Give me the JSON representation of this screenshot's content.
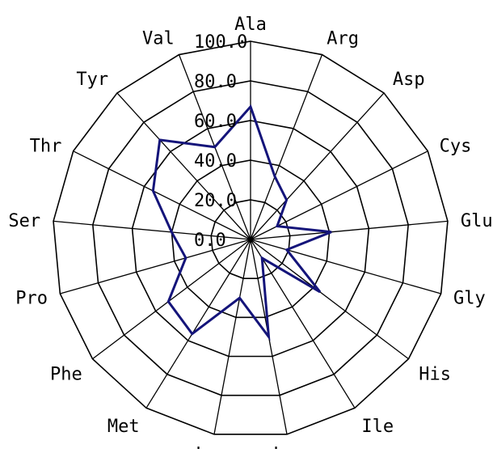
{
  "chart_data": {
    "type": "radar",
    "categories": [
      "Ala",
      "Arg",
      "Asp",
      "Cys",
      "Glu",
      "Gly",
      "His",
      "Ile",
      "Leu",
      "Lys",
      "Met",
      "Phe",
      "Pro",
      "Ser",
      "Thr",
      "Tyr",
      "Val"
    ],
    "series": [
      {
        "values": [
          67,
          34,
          27,
          15,
          41,
          19,
          44,
          11,
          50,
          30,
          56,
          52,
          34,
          40,
          55,
          68,
          50
        ]
      }
    ],
    "radial_ticks": [
      "0.0",
      "20.0",
      "40.0",
      "60.0",
      "80.0",
      "100.0"
    ],
    "rmax": 100,
    "grid": true,
    "colors": {
      "series": "#14147a",
      "grid": "#000000"
    }
  }
}
